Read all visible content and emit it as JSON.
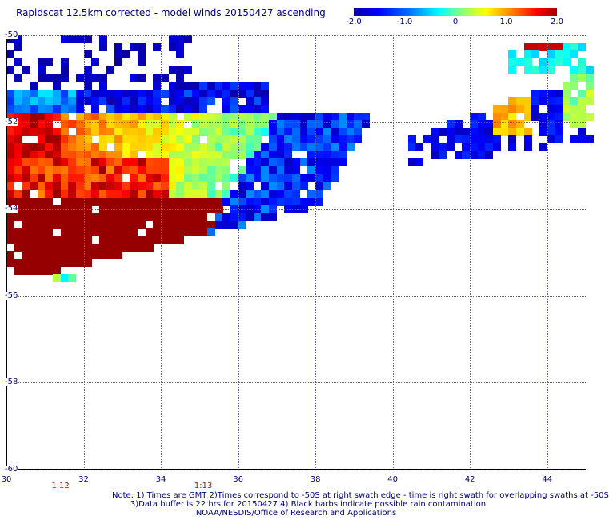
{
  "title": "Rapidscat 12.5km corrected - model winds 20150427 ascending",
  "colorbar": {
    "labels": [
      {
        "text": "-2.0",
        "value": -2.0
      },
      {
        "text": "-1.0",
        "value": -1.0
      },
      {
        "text": "0",
        "value": 0
      },
      {
        "text": "1.0",
        "value": 1.0
      },
      {
        "text": "2.0",
        "value": 2.0
      }
    ],
    "min": -2.0,
    "max": 2.0
  },
  "axes": {
    "lon_range": [
      30,
      45
    ],
    "lat_range": [
      -60,
      -50
    ],
    "lon_ticks": [
      30,
      32,
      34,
      36,
      38,
      40,
      42,
      44
    ],
    "lon_tick_labels": [
      "30",
      "32",
      "34",
      "36",
      "38",
      "40",
      "42",
      "44"
    ],
    "lat_ticks": [
      -50,
      -52,
      -54,
      -56,
      -58,
      -60
    ],
    "lat_tick_labels": [
      "-50",
      "-52",
      "-54",
      "-56",
      "-58",
      "-60"
    ]
  },
  "time_labels": [
    {
      "text": "1:12",
      "lon": 31.4
    },
    {
      "text": "1:13",
      "lon": 35.1
    }
  ],
  "notes": [
    "Note: 1) Times are GMT 2)Times correspond to -50S at right swath edge - time is right swath for overlapping swaths at -50S",
    "3)Data buffer is 22 hrs for 20150427 4) Black barbs indicate possible rain contamination",
    "NOAA/NESDIS/Office of Research and Applications"
  ]
}
